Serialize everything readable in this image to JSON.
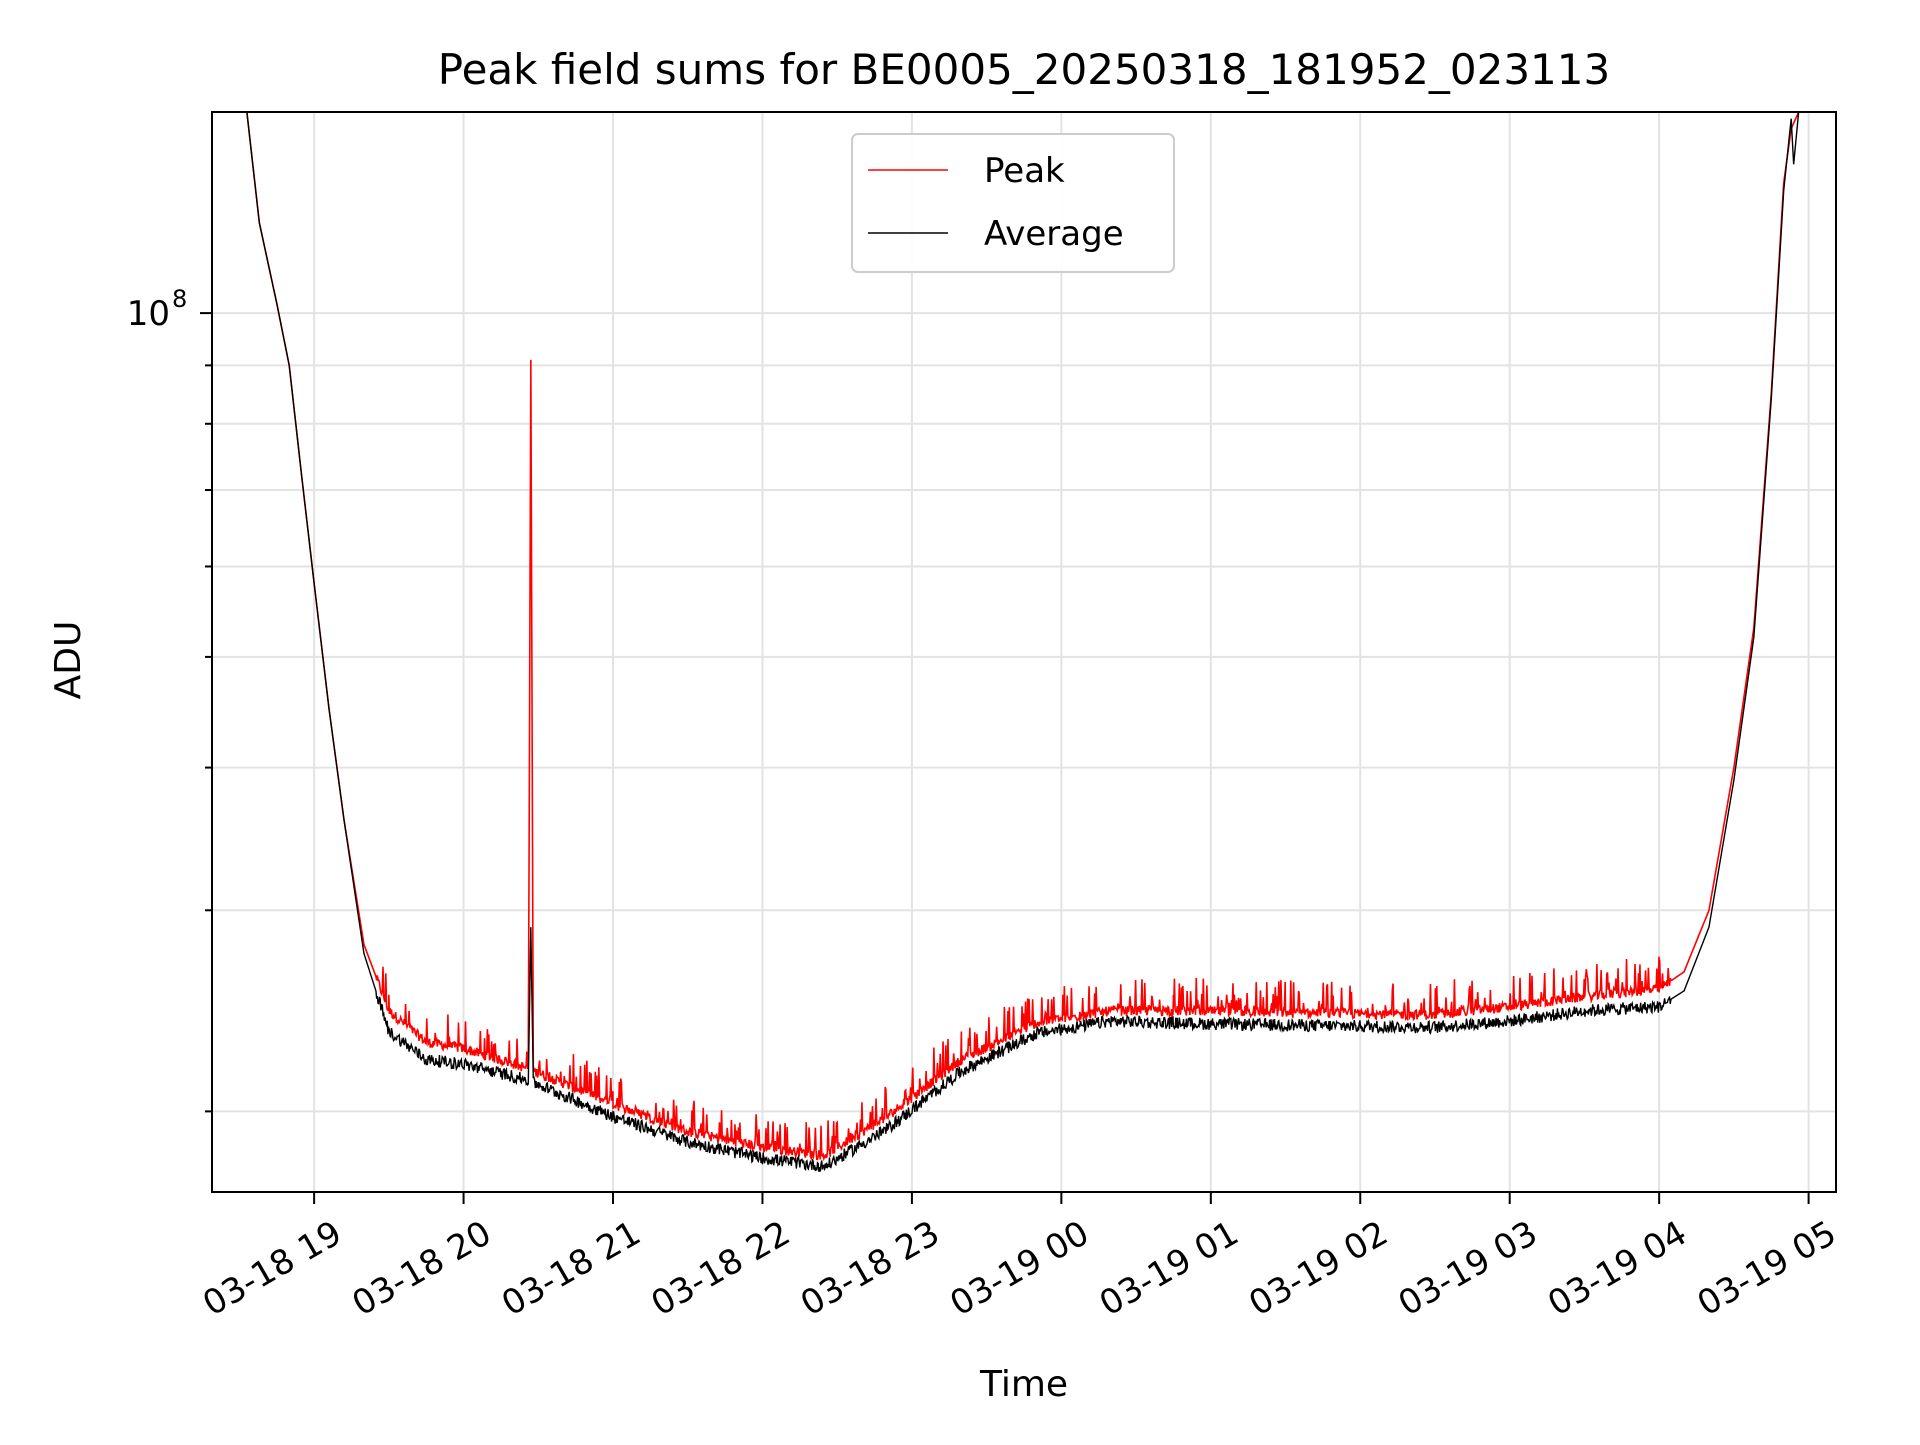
{
  "chart_data": {
    "type": "line",
    "title": "Peak field sums for BE0005_20250318_181952_023113",
    "xlabel": "Time",
    "ylabel": "ADU",
    "x_axis_type": "datetime",
    "x_ticks": [
      "03-18 19",
      "03-18 20",
      "03-18 21",
      "03-18 22",
      "03-18 23",
      "03-19 00",
      "03-19 01",
      "03-19 02",
      "03-19 03",
      "03-19 04",
      "03-19 05"
    ],
    "y_scale": "log",
    "y_tick_labels": [
      {
        "base": "10",
        "exp": "8"
      }
    ],
    "xlim": [
      "2025-03-18 18:19:52",
      "2025-03-19 05:11:00"
    ],
    "ylim": [
      17000000,
      150000000
    ],
    "grid": true,
    "legend_position": "top-center",
    "series": [
      {
        "name": "Peak",
        "color": "#ff0000",
        "noise": true,
        "points": [
          [
            "2025-03-18 18:33",
            150000000
          ],
          [
            "2025-03-18 18:38",
            120000000
          ],
          [
            "2025-03-18 18:45",
            102000000
          ],
          [
            "2025-03-18 18:50",
            90000000
          ],
          [
            "2025-03-18 18:55",
            72000000
          ],
          [
            "2025-03-18 19:00",
            58000000
          ],
          [
            "2025-03-18 19:06",
            45000000
          ],
          [
            "2025-03-18 19:12",
            36000000
          ],
          [
            "2025-03-18 19:20",
            28000000
          ],
          [
            "2025-03-18 19:30",
            24500000
          ],
          [
            "2025-03-18 19:45",
            23000000
          ],
          [
            "2025-03-18 20:00",
            22700000
          ],
          [
            "2025-03-18 20:26",
            21800000
          ],
          [
            "2025-03-18 20:27",
            91000000
          ],
          [
            "2025-03-18 20:28",
            21700000
          ],
          [
            "2025-03-18 21:00",
            20300000
          ],
          [
            "2025-03-18 21:30",
            19200000
          ],
          [
            "2025-03-18 22:00",
            18600000
          ],
          [
            "2025-03-18 22:25",
            18300000
          ],
          [
            "2025-03-18 22:50",
            19800000
          ],
          [
            "2025-03-18 23:20",
            22200000
          ],
          [
            "2025-03-18 23:50",
            23900000
          ],
          [
            "2025-03-19 00:20",
            24500000
          ],
          [
            "2025-03-19 00:45",
            24500000
          ],
          [
            "2025-03-19 01:30",
            24400000
          ],
          [
            "2025-03-19 02:30",
            24300000
          ],
          [
            "2025-03-19 03:00",
            24700000
          ],
          [
            "2025-03-19 03:30",
            25200000
          ],
          [
            "2025-03-19 04:00",
            25600000
          ],
          [
            "2025-03-19 04:10",
            26500000
          ],
          [
            "2025-03-19 04:20",
            30000000
          ],
          [
            "2025-03-19 04:30",
            40000000
          ],
          [
            "2025-03-19 04:38",
            53000000
          ],
          [
            "2025-03-19 04:45",
            85000000
          ],
          [
            "2025-03-19 04:50",
            130000000
          ],
          [
            "2025-03-19 04:53",
            145000000
          ],
          [
            "2025-03-19 04:56",
            150000000
          ]
        ]
      },
      {
        "name": "Average",
        "color": "#000000",
        "noise": false,
        "points": [
          [
            "2025-03-18 18:33",
            150000000
          ],
          [
            "2025-03-18 18:38",
            120000000
          ],
          [
            "2025-03-18 18:45",
            102000000
          ],
          [
            "2025-03-18 18:50",
            90000000
          ],
          [
            "2025-03-18 18:55",
            72000000
          ],
          [
            "2025-03-18 19:00",
            58000000
          ],
          [
            "2025-03-18 19:06",
            45000000
          ],
          [
            "2025-03-18 19:12",
            36000000
          ],
          [
            "2025-03-18 19:20",
            27500000
          ],
          [
            "2025-03-18 19:30",
            23500000
          ],
          [
            "2025-03-18 19:45",
            22200000
          ],
          [
            "2025-03-18 20:00",
            22000000
          ],
          [
            "2025-03-18 20:26",
            21300000
          ],
          [
            "2025-03-18 20:27",
            29000000
          ],
          [
            "2025-03-18 20:28",
            21200000
          ],
          [
            "2025-03-18 21:00",
            19800000
          ],
          [
            "2025-03-18 21:30",
            18800000
          ],
          [
            "2025-03-18 22:00",
            18200000
          ],
          [
            "2025-03-18 22:25",
            17900000
          ],
          [
            "2025-03-18 22:50",
            19300000
          ],
          [
            "2025-03-18 23:20",
            21700000
          ],
          [
            "2025-03-18 23:50",
            23400000
          ],
          [
            "2025-03-19 00:20",
            24000000
          ],
          [
            "2025-03-19 00:45",
            23900000
          ],
          [
            "2025-03-19 01:30",
            23800000
          ],
          [
            "2025-03-19 02:30",
            23700000
          ],
          [
            "2025-03-19 03:00",
            24000000
          ],
          [
            "2025-03-19 03:30",
            24500000
          ],
          [
            "2025-03-19 04:00",
            24700000
          ],
          [
            "2025-03-19 04:10",
            25500000
          ],
          [
            "2025-03-19 04:20",
            29000000
          ],
          [
            "2025-03-19 04:30",
            39000000
          ],
          [
            "2025-03-19 04:38",
            52000000
          ],
          [
            "2025-03-19 04:45",
            84000000
          ],
          [
            "2025-03-19 04:50",
            128000000
          ],
          [
            "2025-03-19 04:53",
            148000000
          ],
          [
            "2025-03-19 04:54",
            135000000
          ],
          [
            "2025-03-19 04:56",
            150000000
          ]
        ]
      }
    ]
  }
}
